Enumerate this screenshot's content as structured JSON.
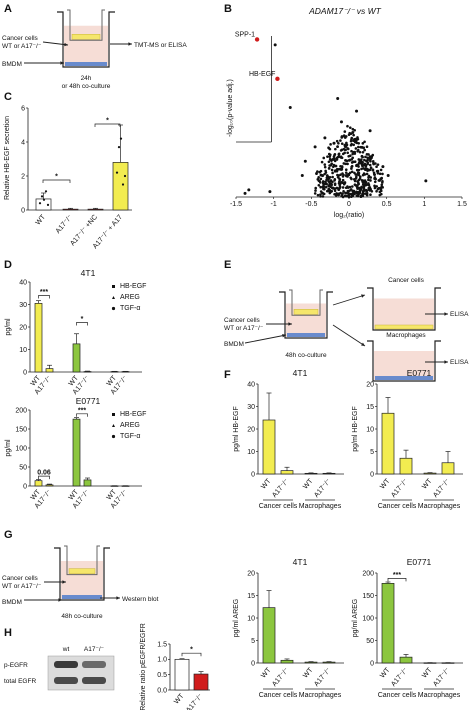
{
  "panel_labels": [
    "A",
    "B",
    "C",
    "D",
    "E",
    "F",
    "G",
    "H"
  ],
  "schematic_a": {
    "left_labels": [
      "Cancer cells",
      "WT or A17⁻/⁻",
      "BMDM"
    ],
    "right_label": "TMT-MS or ELISA",
    "caption": [
      "24h",
      "or 48h co-culture"
    ]
  },
  "schematic_e": {
    "left_labels": [
      "Cancer cells",
      "WT or A17⁻/⁻",
      "BMDM"
    ],
    "caption": "48h co-culture",
    "top_title": "Cancer cells",
    "bottom_title": "Macrophages",
    "elisa_label": "ELISA"
  },
  "schematic_g": {
    "left_labels": [
      "Cancer cells",
      "WT or A17⁻/⁻",
      "BMDM"
    ],
    "caption": "48h co-culture",
    "right_label": "Western blot"
  },
  "blot_h": {
    "lanes": [
      "wt",
      "A17⁻/⁻"
    ],
    "rows": [
      "p-EGFR",
      "total EGFR"
    ]
  },
  "colors": {
    "wt_yellow": "#f2ec50",
    "green": "#8cc63f",
    "red": "#d01c1c",
    "highlight": "#d01c1c",
    "dish_fill": "#f6ddd6",
    "cells_yellow": "#f5e66b",
    "bmdm_blue": "#3a6fc9"
  },
  "chart_data": [
    {
      "id": "B",
      "type": "scatter",
      "title": "ADAM17⁻/⁻ vs WT",
      "xlabel": "log₂(ratio)",
      "ylabel": "-log₁₀(p-value adj.)",
      "xlim": [
        -1.5,
        1.5
      ],
      "xticks": [
        "-1.5",
        "-1",
        "-0.5",
        "0",
        "0.5",
        "1",
        "1.5"
      ],
      "highlighted": [
        {
          "label": "SPP-1",
          "x": -1.22,
          "y": 0.88
        },
        {
          "label": "HB-EGF",
          "x": -0.95,
          "y": 0.66
        }
      ],
      "notable_points": [
        {
          "x": -1.33,
          "y": 0.04
        },
        {
          "x": -1.38,
          "y": 0.02
        },
        {
          "x": -1.05,
          "y": 0.03
        },
        {
          "x": -0.62,
          "y": 0.12
        },
        {
          "x": -0.58,
          "y": 0.2
        },
        {
          "x": -0.32,
          "y": 0.33
        },
        {
          "x": -0.45,
          "y": 0.28
        },
        {
          "x": -0.78,
          "y": 0.5
        },
        {
          "x": -0.98,
          "y": 0.85
        },
        {
          "x": -0.15,
          "y": 0.55
        },
        {
          "x": 0.1,
          "y": 0.48
        },
        {
          "x": 0.28,
          "y": 0.37
        },
        {
          "x": 0.45,
          "y": 0.17
        },
        {
          "x": 0.52,
          "y": 0.12
        },
        {
          "x": 1.02,
          "y": 0.09
        },
        {
          "x": -0.1,
          "y": 0.42
        },
        {
          "x": 0.05,
          "y": 0.36
        },
        {
          "x": -0.2,
          "y": 0.3
        }
      ]
    },
    {
      "id": "C",
      "type": "bar",
      "ylabel": "Relative HB-EGF secretion",
      "categories": [
        "WT",
        "A17⁻/⁻",
        "A17⁻/⁻ +NC",
        "A17⁻/⁻ + A17"
      ],
      "values": [
        0.65,
        0.05,
        0.05,
        2.8
      ],
      "errors": [
        0.35,
        0.05,
        0.05,
        2.2
      ],
      "colors": [
        "#ffffff",
        "#d01c1c",
        "#d01c1c",
        "#f2ec50"
      ],
      "ylim": [
        0,
        6
      ],
      "significance": [
        {
          "between": [
            0,
            1
          ],
          "label": "*"
        },
        {
          "between": [
            2,
            3
          ],
          "label": "*"
        }
      ]
    },
    {
      "id": "D1",
      "type": "bar",
      "title": "4T1",
      "ylabel": "pg/ml",
      "ylim": [
        0,
        40
      ],
      "yticks": [
        0,
        10,
        20,
        30,
        40
      ],
      "categories": [
        "WT",
        "A17⁻/⁻"
      ],
      "legend": [
        "HB-EGF",
        "AREG",
        "TGF-α"
      ],
      "series": [
        {
          "name": "HB-EGF",
          "color": "#f2ec50",
          "values": [
            30.5,
            1.5
          ],
          "errors": [
            1.2,
            1.5
          ]
        },
        {
          "name": "AREG",
          "color": "#8cc63f",
          "values": [
            12.5,
            0.2
          ],
          "errors": [
            4.5,
            0.2
          ]
        },
        {
          "name": "TGF-α",
          "color": "#ffffff",
          "values": [
            0.2,
            0.2
          ],
          "errors": [
            0.1,
            0.1
          ]
        }
      ],
      "significance": [
        {
          "series": "HB-EGF",
          "label": "***"
        },
        {
          "series": "AREG",
          "label": "*"
        }
      ]
    },
    {
      "id": "D2",
      "type": "bar",
      "title": "E0771",
      "ylabel": "pg/ml",
      "ylim": [
        0,
        200
      ],
      "yticks": [
        0,
        50,
        100,
        150,
        200
      ],
      "categories": [
        "WT",
        "A17⁻/⁻"
      ],
      "legend": [
        "HB-EGF",
        "AREG",
        "TGF-α"
      ],
      "series": [
        {
          "name": "HB-EGF",
          "color": "#f2ec50",
          "values": [
            14,
            3
          ],
          "errors": [
            3,
            2
          ]
        },
        {
          "name": "AREG",
          "color": "#8cc63f",
          "values": [
            176,
            16
          ],
          "errors": [
            4,
            5
          ]
        },
        {
          "name": "TGF-α",
          "color": "#ffffff",
          "values": [
            0.5,
            0.5
          ],
          "errors": [
            0.3,
            0.3
          ]
        }
      ],
      "significance": [
        {
          "series": "HB-EGF",
          "label": "0.06"
        },
        {
          "series": "AREG",
          "label": "***"
        }
      ]
    },
    {
      "id": "F1",
      "type": "bar",
      "title": "4T1",
      "ylabel": "pg/ml HB-EGF",
      "ylim": [
        0,
        40
      ],
      "yticks": [
        0,
        10,
        20,
        30,
        40
      ],
      "categories": [
        "WT",
        "A17⁻/⁻",
        "WT",
        "A17⁻/⁻"
      ],
      "groups": [
        "Cancer cells",
        "Macrophages"
      ],
      "values": [
        24,
        1.5,
        0.3,
        0.3
      ],
      "errors": [
        12,
        1.5,
        0.2,
        0.2
      ],
      "colors": [
        "#f2ec50",
        "#f2ec50",
        "#f2ec50",
        "#f2ec50"
      ]
    },
    {
      "id": "F2",
      "type": "bar",
      "title": "E0771",
      "ylabel": "pg/ml HB-EGF",
      "ylim": [
        0,
        20
      ],
      "yticks": [
        0,
        5,
        10,
        15,
        20
      ],
      "categories": [
        "WT",
        "A17⁻/⁻",
        "WT",
        "A17⁻/⁻"
      ],
      "groups": [
        "Cancer cells",
        "Macrophages"
      ],
      "values": [
        13.5,
        3.5,
        0.2,
        2.5
      ],
      "errors": [
        3.5,
        1.8,
        0.1,
        2.5
      ],
      "colors": [
        "#f2ec50",
        "#f2ec50",
        "#f2ec50",
        "#f2ec50"
      ]
    },
    {
      "id": "F3",
      "type": "bar",
      "title": "4T1",
      "ylabel": "pg/ml AREG",
      "ylim": [
        0,
        20
      ],
      "yticks": [
        0,
        5,
        10,
        15,
        20
      ],
      "categories": [
        "WT",
        "A17⁻/⁻",
        "WT",
        "A17⁻/⁻"
      ],
      "groups": [
        "Cancer cells",
        "Macrophages"
      ],
      "values": [
        12.3,
        0.6,
        0.2,
        0.2
      ],
      "errors": [
        3.8,
        0.3,
        0.1,
        0.1
      ],
      "colors": [
        "#8cc63f",
        "#8cc63f",
        "#8cc63f",
        "#8cc63f"
      ]
    },
    {
      "id": "F4",
      "type": "bar",
      "title": "E0771",
      "ylabel": "pg/ml AREG",
      "ylim": [
        0,
        200
      ],
      "yticks": [
        0,
        50,
        100,
        150,
        200
      ],
      "categories": [
        "WT",
        "A17⁻/⁻",
        "WT",
        "A17⁻/⁻"
      ],
      "groups": [
        "Cancer cells",
        "Macrophages"
      ],
      "values": [
        177,
        13,
        0.5,
        0.5
      ],
      "errors": [
        3,
        6,
        0.3,
        0.3
      ],
      "colors": [
        "#8cc63f",
        "#8cc63f",
        "#8cc63f",
        "#8cc63f"
      ],
      "significance": [
        {
          "between": [
            0,
            1
          ],
          "label": "***"
        }
      ]
    },
    {
      "id": "H",
      "type": "bar",
      "ylabel": "Relative ratio pEGFR/EGFR",
      "ylim": [
        0,
        1.5
      ],
      "yticks": [
        "0.0",
        "0.5",
        "1.0",
        "1.5"
      ],
      "categories": [
        "WT",
        "A17⁻/⁻"
      ],
      "values": [
        1.0,
        0.52
      ],
      "errors": [
        0.02,
        0.08
      ],
      "colors": [
        "#ffffff",
        "#d01c1c"
      ],
      "significance": [
        {
          "between": [
            0,
            1
          ],
          "label": "*"
        }
      ]
    }
  ]
}
